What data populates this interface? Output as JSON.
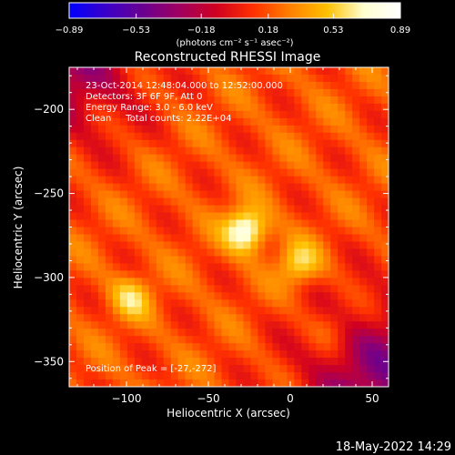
{
  "chart_data": {
    "type": "heatmap",
    "title": "Reconstructed RHESSI Image",
    "xlabel": "Heliocentric X (arcsec)",
    "ylabel": "Heliocentric Y (arcsec)",
    "x_range": [
      -135,
      60
    ],
    "y_range": [
      -365,
      -175
    ],
    "x_ticks": [
      -100,
      -50,
      0,
      50
    ],
    "x_tick_labels": [
      "−100",
      "−50",
      "0",
      "50"
    ],
    "y_ticks": [
      -200,
      -250,
      -300,
      -350
    ],
    "y_tick_labels": [
      "−200",
      "−250",
      "−300",
      "−350"
    ],
    "colorbar": {
      "range": [
        -0.89,
        0.89
      ],
      "ticks": [
        -0.89,
        -0.53,
        -0.18,
        0.18,
        0.53,
        0.89
      ],
      "tick_labels": [
        "−0.89",
        "−0.53",
        "−0.18",
        "0.18",
        "0.53",
        "0.89"
      ],
      "unit_label": "(photons cm⁻² s⁻¹ asec⁻²)",
      "colors": [
        "#0000ff",
        "#3a00c8",
        "#6a0090",
        "#a00060",
        "#d00020",
        "#ff3000",
        "#ff8000",
        "#ffc000",
        "#ffffd0",
        "#ffffff"
      ]
    },
    "annotations": [
      "23-Oct-2014 12:48:04.000 to 12:52:00.000",
      "Detectors: 3F 6F 9F, Att 0",
      "Energy Range: 3.0 - 6.0 keV",
      "Clean     Total counts: 2.22E+04"
    ],
    "peak_label": "Position of Peak = [-27,-272]",
    "peak": {
      "x": -27,
      "y": -272,
      "value": 0.89
    },
    "sources": [
      {
        "x": -27,
        "y": -272,
        "value": 0.89
      },
      {
        "x": 5,
        "y": -292,
        "value": 0.62
      },
      {
        "x": -97,
        "y": -312,
        "value": 0.55
      },
      {
        "x": 25,
        "y": -330,
        "value": 0.35
      }
    ],
    "grid": false
  },
  "footer": {
    "date": "18-May-2022 14:29"
  }
}
